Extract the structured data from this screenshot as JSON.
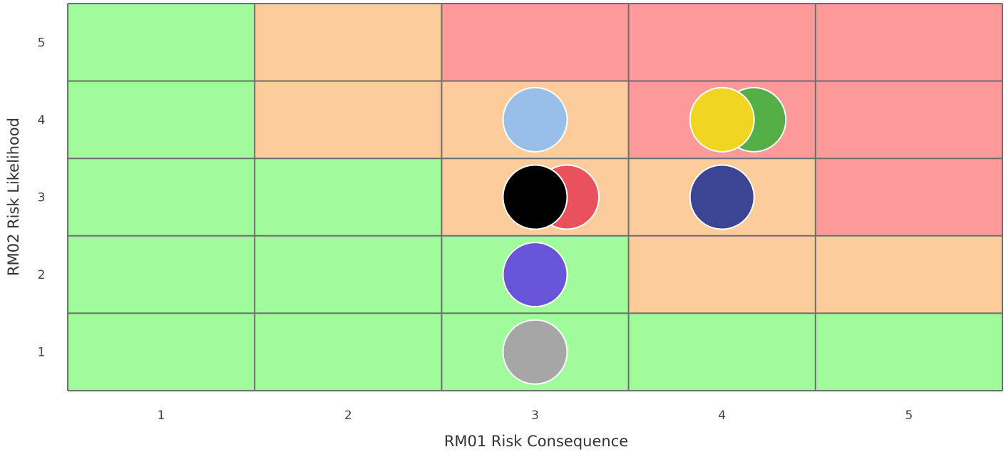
{
  "chart_data": {
    "type": "heatmap",
    "xlabel": "RM01 Risk Consequence",
    "ylabel": "RM02 Risk Likelihood",
    "x_categories": [
      "1",
      "2",
      "3",
      "4",
      "5"
    ],
    "y_categories": [
      "1",
      "2",
      "3",
      "4",
      "5"
    ],
    "colors": {
      "low": "#a0fc9a",
      "medium": "#fccc9a",
      "high": "#fc9a9a",
      "grid": "#6e6e6e"
    },
    "cells": [
      [
        "low",
        "low",
        "low",
        "low",
        "low"
      ],
      [
        "low",
        "low",
        "low",
        "medium",
        "medium"
      ],
      [
        "low",
        "low",
        "medium",
        "medium",
        "high"
      ],
      [
        "low",
        "medium",
        "medium",
        "high",
        "high"
      ],
      [
        "low",
        "medium",
        "high",
        "high",
        "high"
      ]
    ],
    "points": [
      {
        "consequence": 3,
        "likelihood": 1,
        "color": "#a6a6a6"
      },
      {
        "consequence": 3,
        "likelihood": 2,
        "color": "#6854d6"
      },
      {
        "consequence": 3.17,
        "likelihood": 3,
        "color": "#e9525c"
      },
      {
        "consequence": 3,
        "likelihood": 3,
        "color": "#000000"
      },
      {
        "consequence": 3,
        "likelihood": 4,
        "color": "#98bfe8"
      },
      {
        "consequence": 4,
        "likelihood": 3,
        "color": "#3c4593"
      },
      {
        "consequence": 4.17,
        "likelihood": 4,
        "color": "#52ae45"
      },
      {
        "consequence": 4,
        "likelihood": 4,
        "color": "#f0d620"
      }
    ]
  }
}
